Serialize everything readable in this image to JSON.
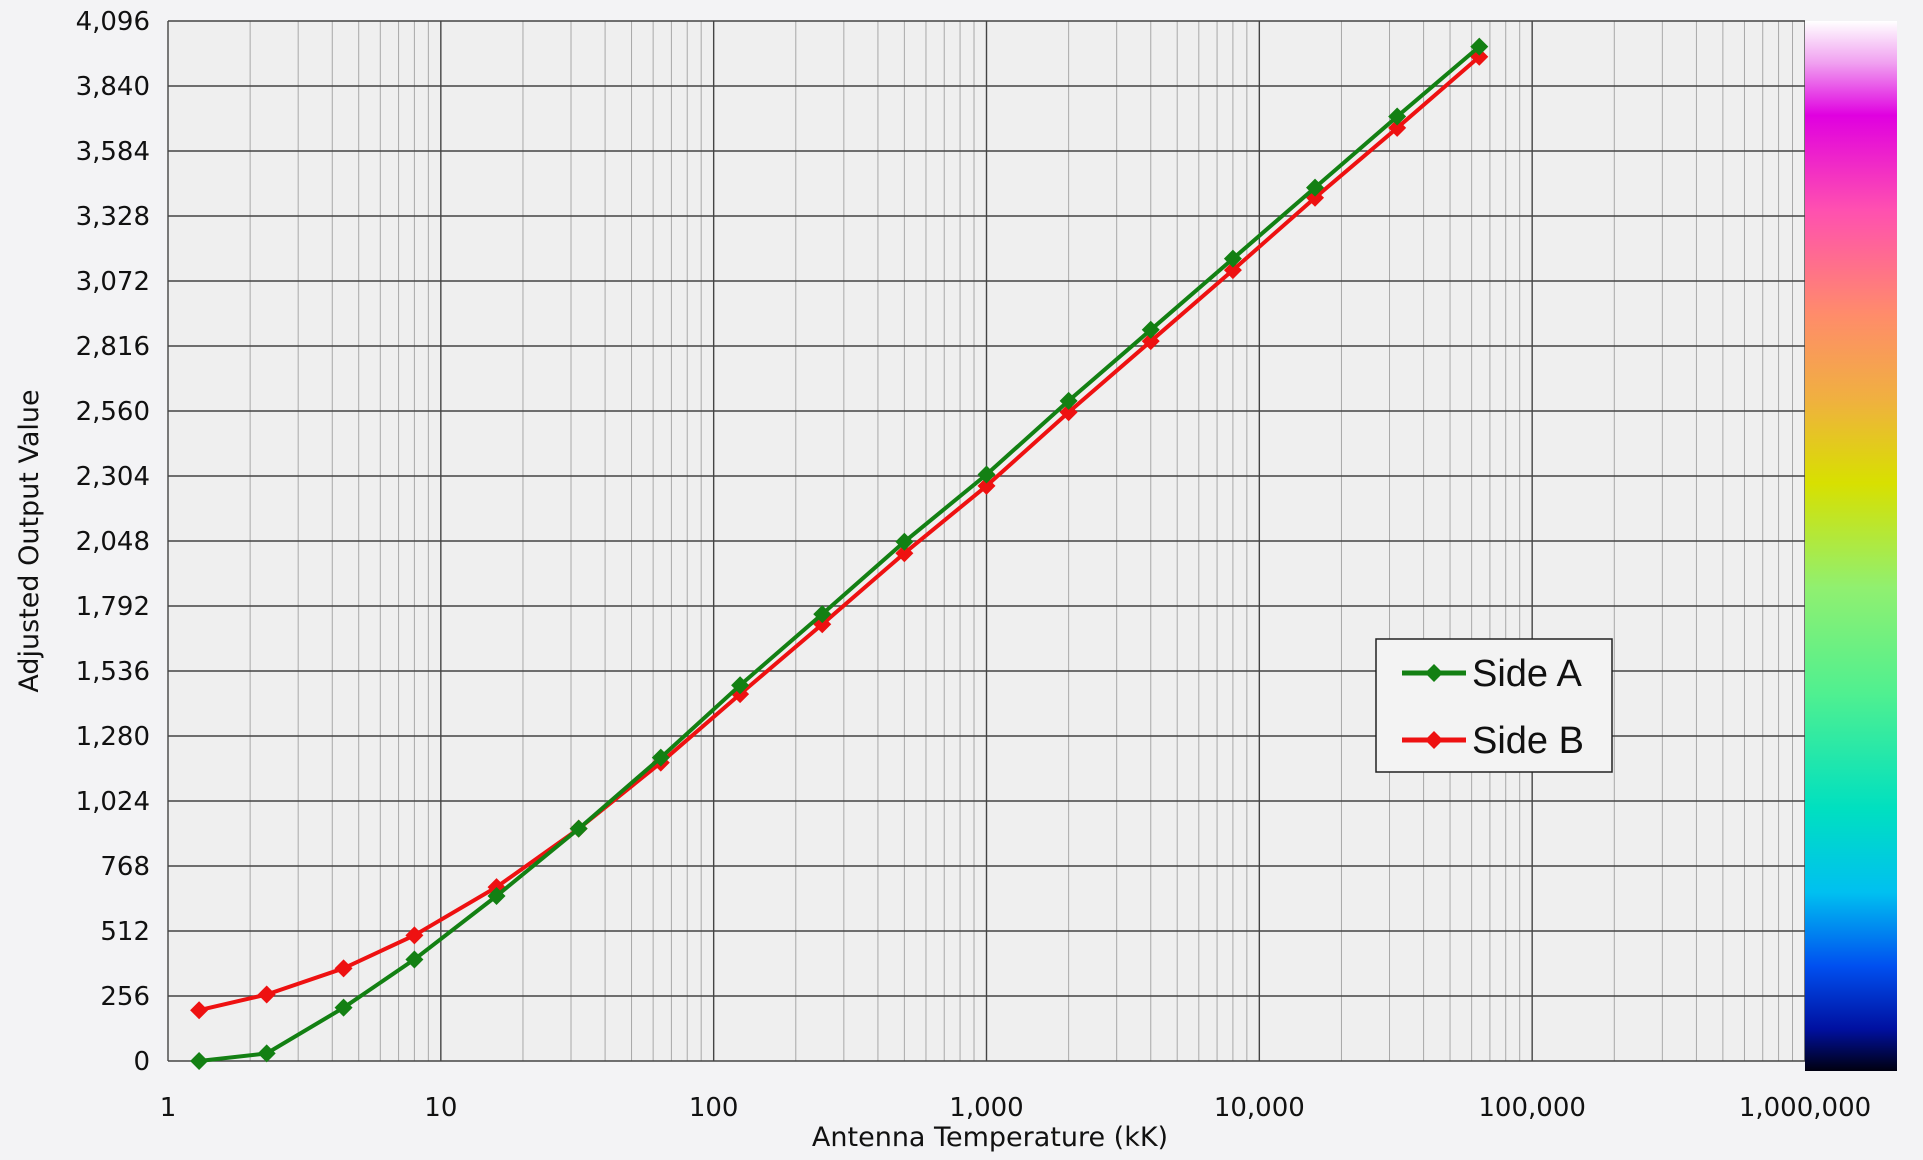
{
  "chart_data": {
    "type": "line",
    "title": "",
    "xlabel": "Antenna Temperature (kK)",
    "ylabel": "Adjusted Output Value",
    "xscale": "log",
    "xlim": [
      1,
      1000000
    ],
    "ylim": [
      0,
      4096
    ],
    "x_ticks": [
      "1",
      "10",
      "100",
      "1,000",
      "10,000",
      "100,000",
      "1,000,000"
    ],
    "y_ticks": [
      "0",
      "256",
      "512",
      "768",
      "1,024",
      "1,280",
      "1,536",
      "1,792",
      "2,048",
      "2,304",
      "2,560",
      "2,816",
      "3,072",
      "3,328",
      "3,584",
      "3,840",
      "4,096"
    ],
    "grid": true,
    "legend_position": "center-right",
    "colorbar": "vertical rainbow strip on the right edge (black at bottom, through blue, cyan, green, yellow, orange, pink, magenta, to white at top)",
    "series": [
      {
        "name": "Side A",
        "color": "#138013",
        "marker": "diamond",
        "x": [
          1.3,
          2.3,
          4.4,
          8,
          16,
          32,
          64,
          125,
          250,
          500,
          1000,
          2000,
          4000,
          8000,
          16000,
          32000,
          64000
        ],
        "y": [
          0,
          30,
          210,
          400,
          650,
          915,
          1195,
          1480,
          1760,
          2045,
          2310,
          2600,
          2880,
          3160,
          3440,
          3720,
          3995
        ]
      },
      {
        "name": "Side B",
        "color": "#ee1111",
        "marker": "diamond",
        "x": [
          1.3,
          2.3,
          4.4,
          8,
          16,
          32,
          64,
          125,
          250,
          500,
          1000,
          2000,
          4000,
          8000,
          16000,
          32000,
          64000
        ],
        "y": [
          200,
          262,
          365,
          495,
          685,
          915,
          1175,
          1445,
          1720,
          2000,
          2265,
          2555,
          2835,
          3115,
          3400,
          3675,
          3955
        ]
      }
    ]
  }
}
